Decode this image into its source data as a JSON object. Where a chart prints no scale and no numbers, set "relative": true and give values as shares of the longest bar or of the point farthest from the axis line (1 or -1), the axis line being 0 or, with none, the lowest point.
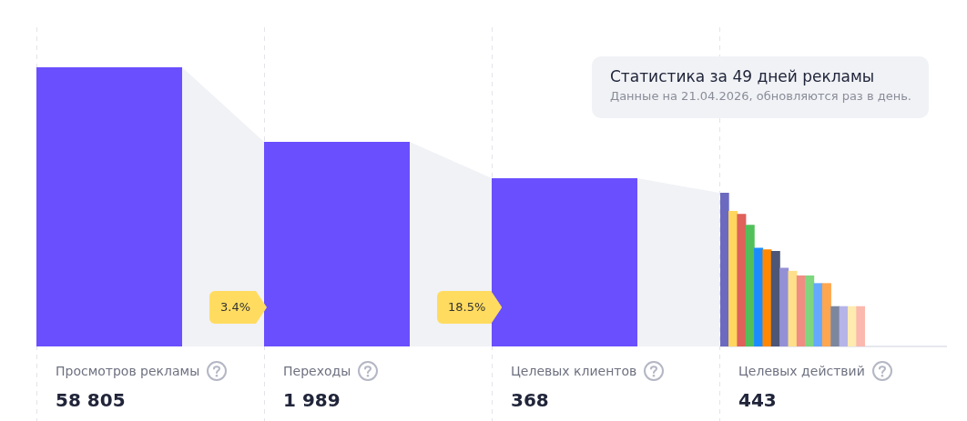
{
  "chart_data": [
    {
      "type": "other",
      "title": "Статистика за 49 дней рекламы",
      "subtitle": "Данные на 21.04.2026, обновляются раз в день.",
      "categories": [
        "Просмотров рекламы",
        "Переходы",
        "Целевых клиентов",
        "Целевых действий"
      ],
      "values": [
        58805,
        1989,
        368,
        443
      ],
      "value_labels": [
        "58 805",
        "1 989",
        "368",
        "443"
      ],
      "color": "#6a4fff",
      "annotations": [
        "3.4%",
        "18.5%"
      ]
    },
    {
      "type": "bar",
      "relative": true,
      "categories": [
        null,
        null,
        null,
        null,
        null,
        null,
        null,
        null,
        null,
        null,
        null,
        null,
        null,
        null,
        null,
        null,
        null
      ],
      "values": [
        1,
        0.88,
        0.86,
        0.79,
        0.64,
        0.63,
        0.62,
        0.51,
        0.49,
        0.46,
        0.46,
        0.41,
        0.41,
        0.26,
        0.26,
        0.26,
        0.26
      ],
      "colors": [
        "#6b69c0",
        "#ffd75e",
        "#e0605a",
        "#52c05a",
        "#1a8cff",
        "#ff8800",
        "#4e5678",
        "#9490d6",
        "#ffe08a",
        "#f08c82",
        "#7ed67e",
        "#64a8ff",
        "#ffa64e",
        "#7c879e",
        "#b5b3e8",
        "#ffebb0",
        "#fbb8ae"
      ]
    }
  ]
}
